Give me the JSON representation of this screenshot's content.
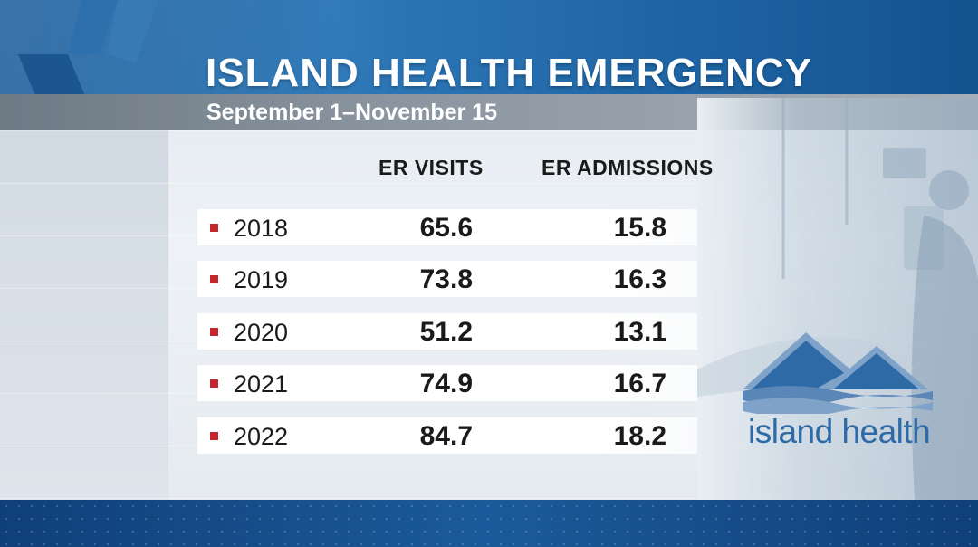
{
  "header": {
    "title": "ISLAND HEALTH EMERGENCY",
    "subtitle": "September 1–November 15"
  },
  "chart_data": {
    "type": "table",
    "title": "ISLAND HEALTH EMERGENCY",
    "subtitle": "September 1–November 15",
    "columns": [
      "ER VISITS",
      "ER ADMISSIONS"
    ],
    "rows": [
      {
        "year": "2018",
        "er_visits": "65.6",
        "er_admissions": "15.8"
      },
      {
        "year": "2019",
        "er_visits": "73.8",
        "er_admissions": "16.3"
      },
      {
        "year": "2020",
        "er_visits": "51.2",
        "er_admissions": "13.1"
      },
      {
        "year": "2021",
        "er_visits": "74.9",
        "er_admissions": "16.7"
      },
      {
        "year": "2022",
        "er_visits": "84.7",
        "er_admissions": "18.2"
      }
    ]
  },
  "logo": {
    "text": "island health",
    "icon": "mountains-waves-icon",
    "colors": {
      "primary": "#2d6aa6",
      "secondary": "#7fa3c8"
    }
  },
  "colors": {
    "band_blue": "#1e64a4",
    "bullet_red": "#c4262e",
    "text": "#1a1a1a"
  }
}
